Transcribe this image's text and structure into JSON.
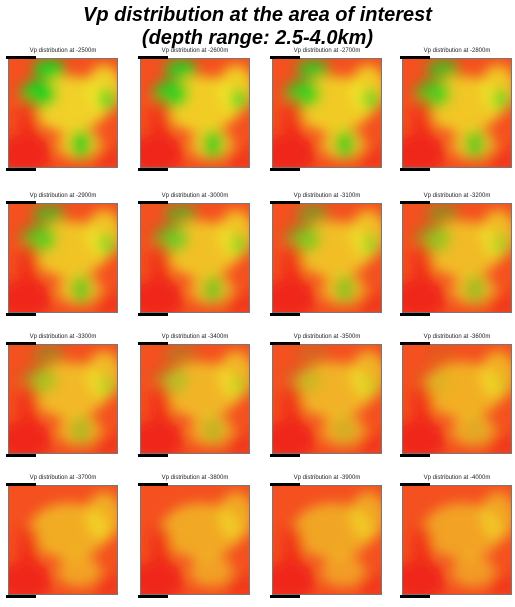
{
  "title": {
    "line1": "Vp distribution at the area of interest",
    "line2": "(depth range: 2.5-4.0km)"
  },
  "panel_title_prefix": "Vp distribution at ",
  "depths": [
    "-2500m",
    "-2600m",
    "-2700m",
    "-2800m",
    "-2900m",
    "-3000m",
    "-3100m",
    "-3200m",
    "-3300m",
    "-3400m",
    "-3500m",
    "-3600m",
    "-3700m",
    "-3800m",
    "-3900m",
    "-4000m"
  ],
  "colors": {
    "low": "#1ed21e",
    "mid": "#f0e628",
    "high": "#ee1e14",
    "base": "#f45020"
  }
}
